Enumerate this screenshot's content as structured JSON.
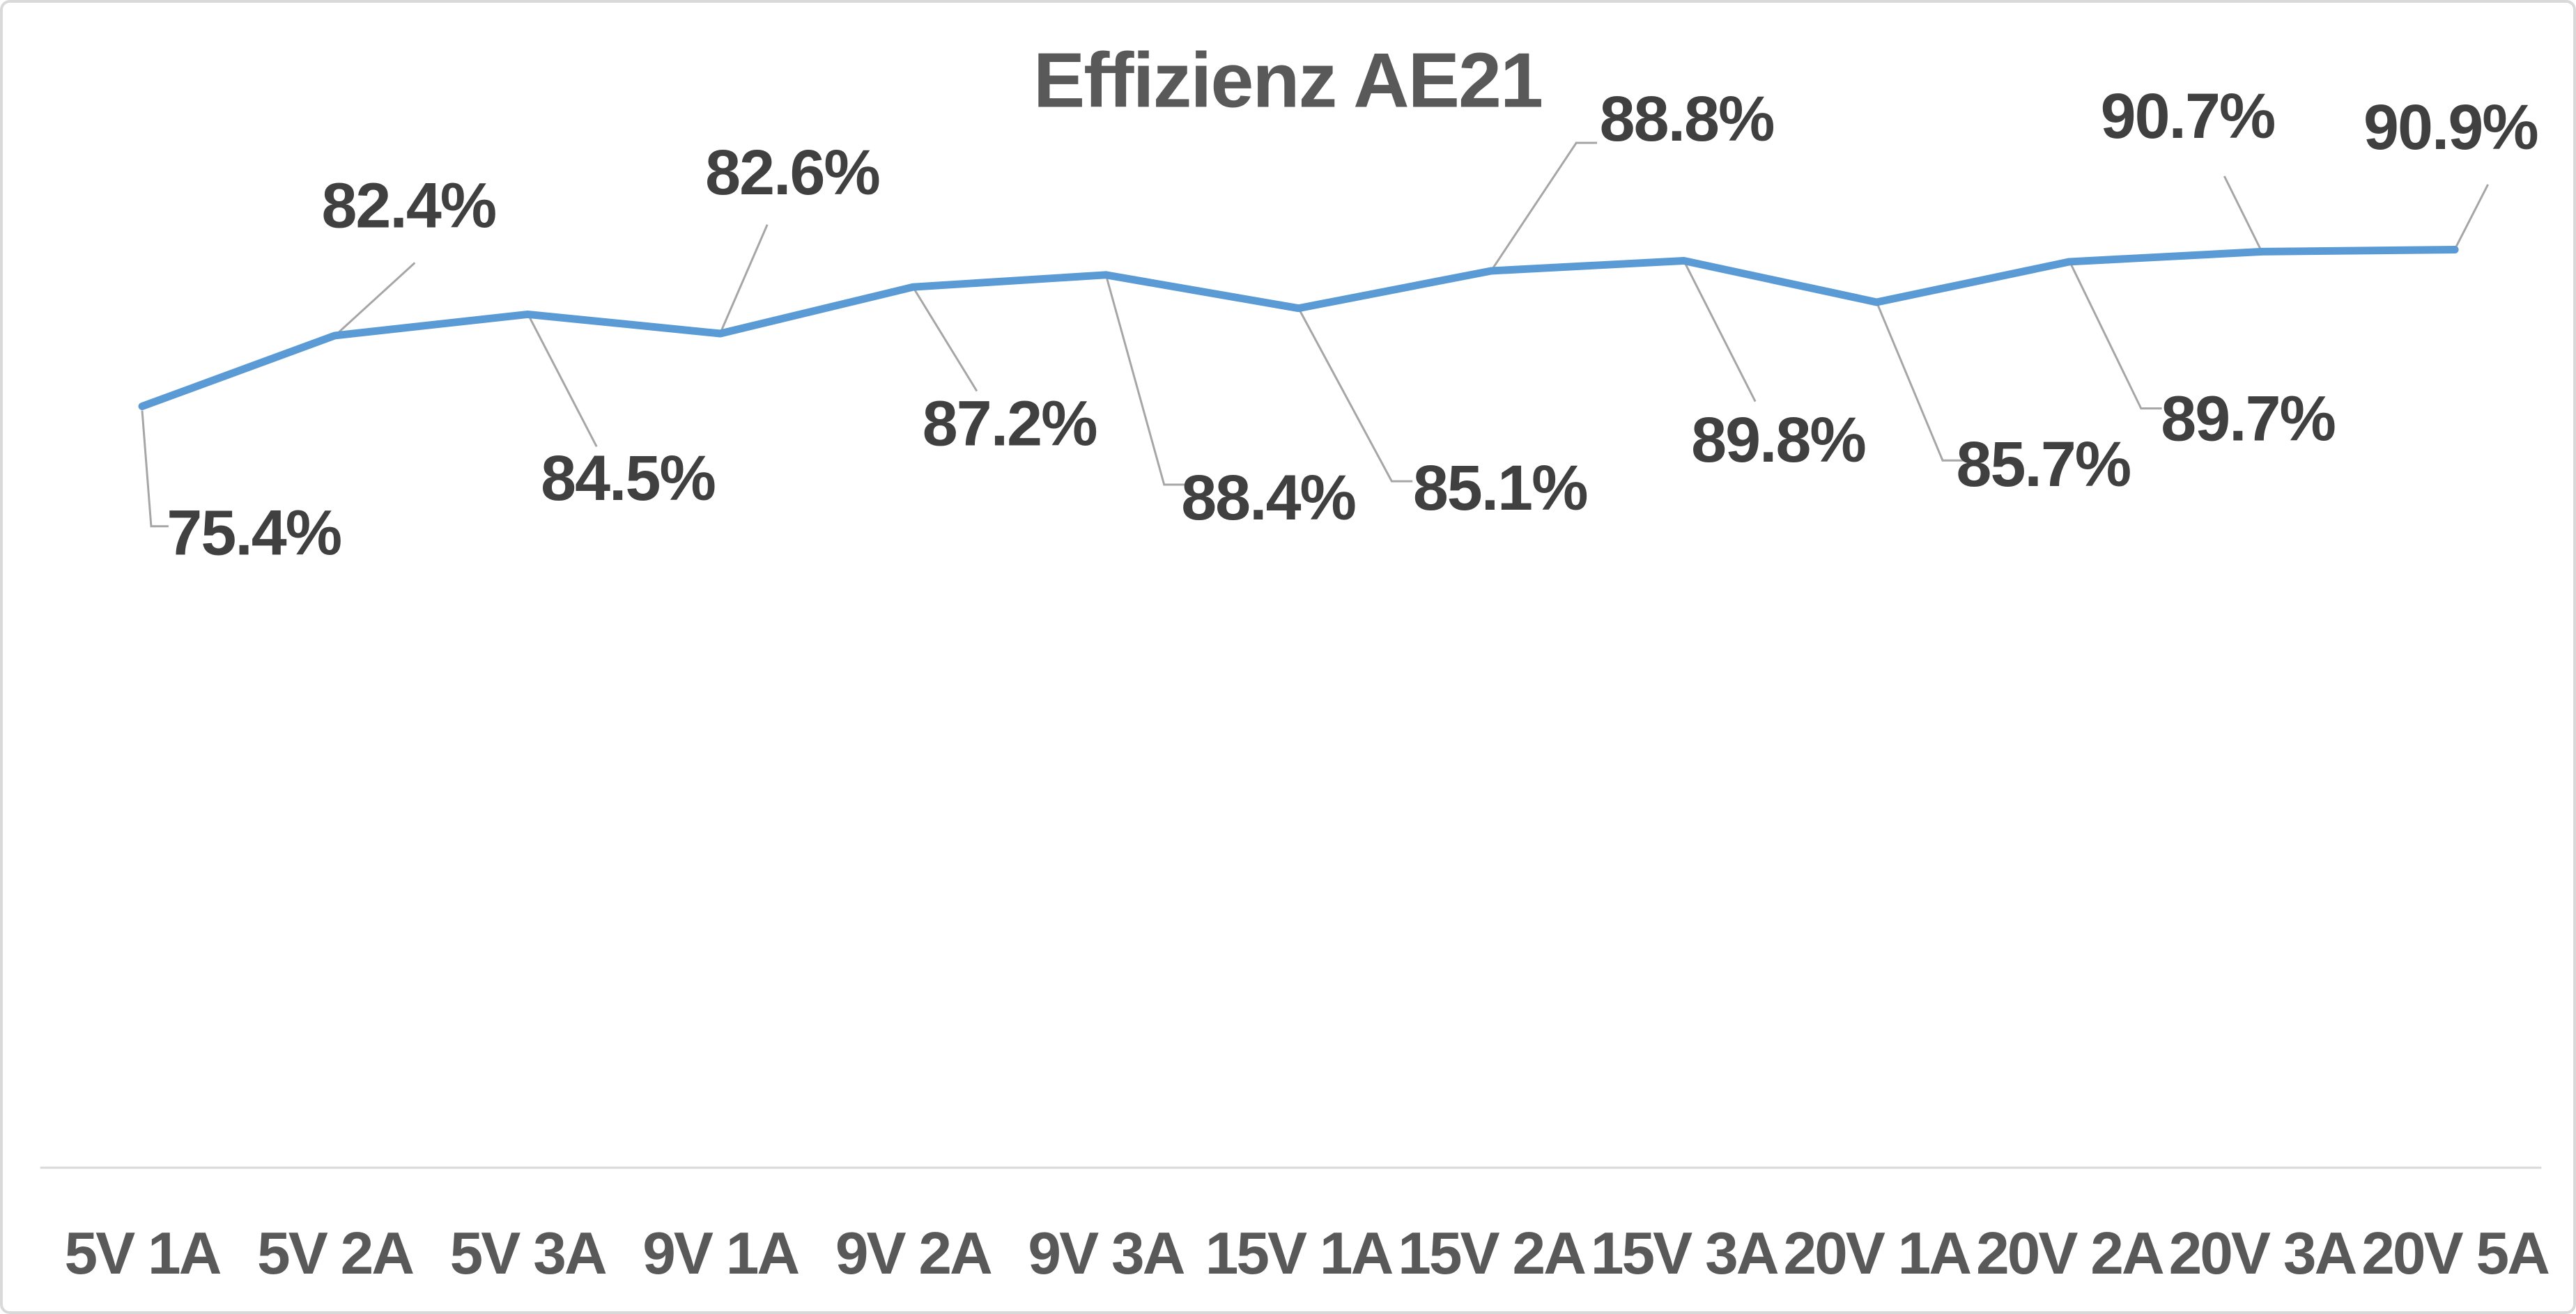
{
  "frame": {
    "background": "#FFFFFF",
    "border_color": "#D9D9D9"
  },
  "chart_data": {
    "type": "line",
    "title": "Effizienz AE21",
    "categories": [
      "5V 1A",
      "5V 2A",
      "5V 3A",
      "9V 1A",
      "9V 2A",
      "9V 3A",
      "15V 1A",
      "15V 2A",
      "15V 3A",
      "20V 1A",
      "20V 2A",
      "20V 3A",
      "20V 5A"
    ],
    "series": [
      {
        "name": "Effizienz AE21",
        "values": [
          75.4,
          82.4,
          84.5,
          82.6,
          87.2,
          88.4,
          85.1,
          88.8,
          89.8,
          85.7,
          89.7,
          90.7,
          90.9
        ]
      }
    ],
    "data_labels": [
      "75.4%",
      "82.4%",
      "84.5%",
      "82.6%",
      "87.2%",
      "88.4%",
      "85.1%",
      "88.8%",
      "89.8%",
      "85.7%",
      "89.7%",
      "90.7%",
      "90.9%"
    ],
    "data_label_positions": [
      "below",
      "above",
      "below",
      "above",
      "below",
      "below",
      "below",
      "above",
      "below",
      "below",
      "below",
      "above",
      "above"
    ],
    "unit": "%",
    "xlabel": "",
    "ylabel": "",
    "ylim": [
      74.5,
      91.5
    ],
    "grid": false,
    "legend": false,
    "colors": {
      "line": "#5B9BD5",
      "leader_line": "#A6A6A6",
      "axis_line": "#D9D9D9",
      "title_text": "#595959",
      "data_label_text": "#404040",
      "category_text": "#595959"
    }
  }
}
